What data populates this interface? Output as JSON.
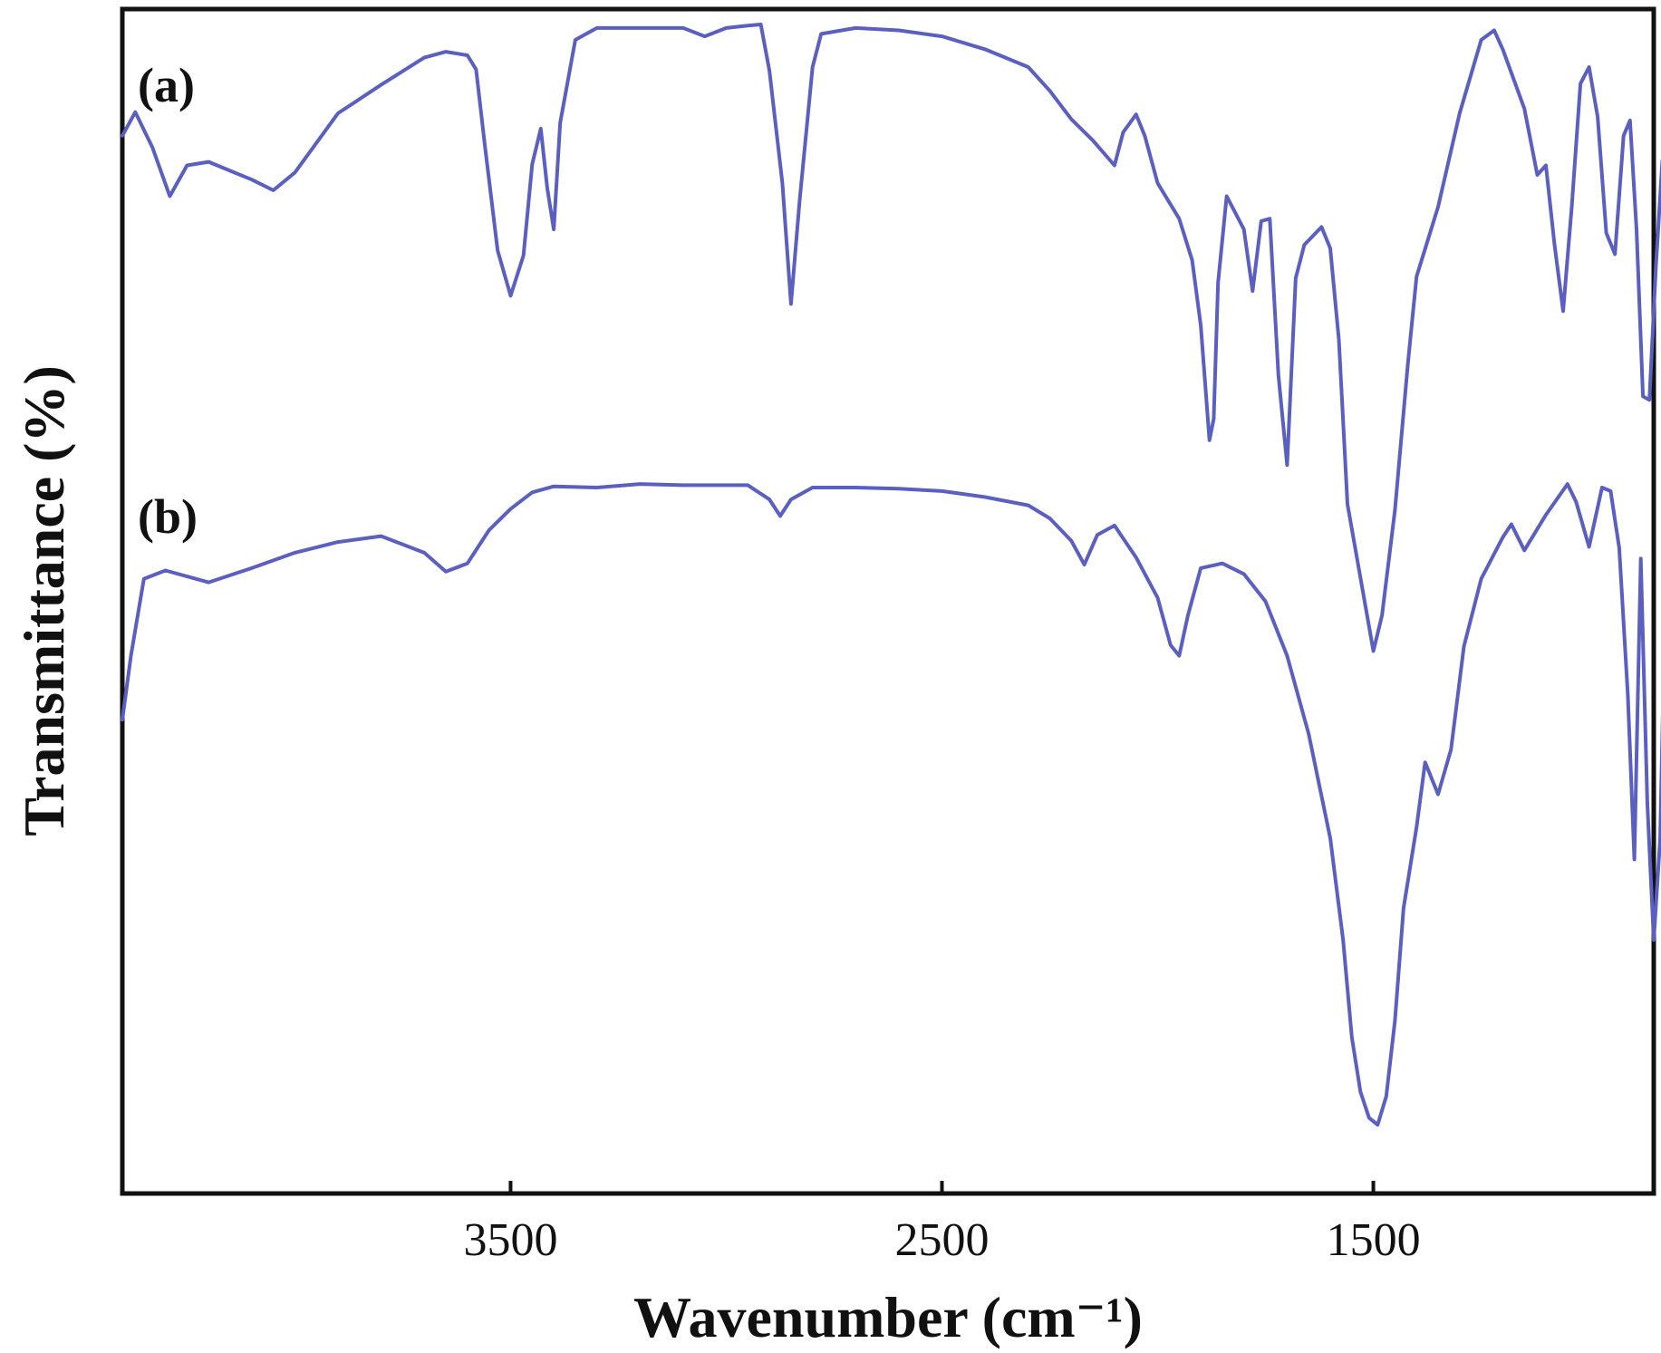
{
  "chart_data": {
    "type": "line",
    "xlabel": "Wavenumber (cm⁻¹)",
    "ylabel": "Transmittance (%)",
    "x_reversed": true,
    "xlim": [
      4400,
      850
    ],
    "ylim": [
      0,
      100
    ],
    "xticks": [
      3500,
      2500,
      1500
    ],
    "line_color": "#5a5fc0",
    "frame_color": "#111111",
    "grid": false,
    "legend": "none",
    "series": [
      {
        "label": "(a)",
        "points": [
          [
            4400,
            89.3
          ],
          [
            4370,
            91.3
          ],
          [
            4330,
            88.3
          ],
          [
            4290,
            84.2
          ],
          [
            4250,
            86.8
          ],
          [
            4200,
            87.1
          ],
          [
            4100,
            85.6
          ],
          [
            4050,
            84.7
          ],
          [
            4000,
            86.2
          ],
          [
            3900,
            91.2
          ],
          [
            3800,
            93.6
          ],
          [
            3700,
            95.9
          ],
          [
            3650,
            96.4
          ],
          [
            3600,
            96.1
          ],
          [
            3580,
            94.9
          ],
          [
            3560,
            88.6
          ],
          [
            3530,
            79.6
          ],
          [
            3500,
            75.8
          ],
          [
            3470,
            79.2
          ],
          [
            3450,
            86.9
          ],
          [
            3430,
            89.9
          ],
          [
            3415,
            84.9
          ],
          [
            3400,
            81.4
          ],
          [
            3385,
            90.4
          ],
          [
            3350,
            97.4
          ],
          [
            3300,
            98.4
          ],
          [
            3200,
            98.4
          ],
          [
            3100,
            98.4
          ],
          [
            3050,
            97.7
          ],
          [
            3000,
            98.4
          ],
          [
            2950,
            98.6
          ],
          [
            2920,
            98.7
          ],
          [
            2900,
            94.8
          ],
          [
            2870,
            85.3
          ],
          [
            2850,
            75.1
          ],
          [
            2830,
            83.8
          ],
          [
            2800,
            95.1
          ],
          [
            2780,
            97.9
          ],
          [
            2700,
            98.4
          ],
          [
            2600,
            98.2
          ],
          [
            2500,
            97.7
          ],
          [
            2400,
            96.6
          ],
          [
            2300,
            95.1
          ],
          [
            2250,
            93.1
          ],
          [
            2200,
            90.7
          ],
          [
            2150,
            88.9
          ],
          [
            2100,
            86.8
          ],
          [
            2080,
            89.6
          ],
          [
            2050,
            91.1
          ],
          [
            2030,
            89.3
          ],
          [
            2000,
            85.3
          ],
          [
            1950,
            82.3
          ],
          [
            1920,
            78.8
          ],
          [
            1900,
            73.3
          ],
          [
            1880,
            63.6
          ],
          [
            1870,
            65.4
          ],
          [
            1860,
            76.9
          ],
          [
            1840,
            84.2
          ],
          [
            1800,
            81.4
          ],
          [
            1780,
            76.2
          ],
          [
            1760,
            82.1
          ],
          [
            1740,
            82.3
          ],
          [
            1720,
            69.1
          ],
          [
            1700,
            61.5
          ],
          [
            1680,
            77.3
          ],
          [
            1660,
            80.1
          ],
          [
            1620,
            81.6
          ],
          [
            1600,
            79.8
          ],
          [
            1580,
            72.1
          ],
          [
            1560,
            58.2
          ],
          [
            1530,
            52.0
          ],
          [
            1500,
            45.8
          ],
          [
            1480,
            48.8
          ],
          [
            1450,
            57.7
          ],
          [
            1420,
            70.0
          ],
          [
            1400,
            77.4
          ],
          [
            1350,
            83.3
          ],
          [
            1300,
            91.2
          ],
          [
            1250,
            97.4
          ],
          [
            1220,
            98.2
          ],
          [
            1200,
            96.6
          ],
          [
            1150,
            91.6
          ],
          [
            1120,
            86.0
          ],
          [
            1100,
            86.8
          ],
          [
            1080,
            80.1
          ],
          [
            1060,
            74.5
          ],
          [
            1040,
            83.3
          ],
          [
            1020,
            93.7
          ],
          [
            1000,
            95.1
          ],
          [
            980,
            90.9
          ],
          [
            960,
            81.1
          ],
          [
            940,
            79.3
          ],
          [
            920,
            89.3
          ],
          [
            905,
            90.6
          ],
          [
            890,
            81.4
          ],
          [
            875,
            67.3
          ],
          [
            860,
            67.0
          ],
          [
            845,
            78.3
          ],
          [
            830,
            87.2
          ]
        ]
      },
      {
        "label": "(b)",
        "points": [
          [
            4400,
            40.0
          ],
          [
            4380,
            45.4
          ],
          [
            4350,
            51.9
          ],
          [
            4300,
            52.6
          ],
          [
            4200,
            51.6
          ],
          [
            4100,
            52.8
          ],
          [
            4000,
            54.1
          ],
          [
            3900,
            55.0
          ],
          [
            3800,
            55.5
          ],
          [
            3700,
            54.1
          ],
          [
            3650,
            52.5
          ],
          [
            3600,
            53.2
          ],
          [
            3550,
            56.0
          ],
          [
            3500,
            57.8
          ],
          [
            3450,
            59.2
          ],
          [
            3400,
            59.7
          ],
          [
            3300,
            59.6
          ],
          [
            3200,
            59.9
          ],
          [
            3100,
            59.8
          ],
          [
            2950,
            59.8
          ],
          [
            2900,
            58.6
          ],
          [
            2875,
            57.2
          ],
          [
            2850,
            58.6
          ],
          [
            2800,
            59.6
          ],
          [
            2700,
            59.6
          ],
          [
            2600,
            59.5
          ],
          [
            2500,
            59.3
          ],
          [
            2400,
            58.8
          ],
          [
            2300,
            58.1
          ],
          [
            2250,
            57.0
          ],
          [
            2200,
            55.1
          ],
          [
            2170,
            53.1
          ],
          [
            2140,
            55.6
          ],
          [
            2100,
            56.4
          ],
          [
            2050,
            53.7
          ],
          [
            2000,
            50.3
          ],
          [
            1970,
            46.3
          ],
          [
            1950,
            45.4
          ],
          [
            1930,
            48.8
          ],
          [
            1900,
            52.8
          ],
          [
            1850,
            53.2
          ],
          [
            1800,
            52.3
          ],
          [
            1750,
            50.0
          ],
          [
            1700,
            45.4
          ],
          [
            1650,
            38.8
          ],
          [
            1600,
            30.0
          ],
          [
            1570,
            21.4
          ],
          [
            1550,
            13.2
          ],
          [
            1530,
            8.6
          ],
          [
            1510,
            6.4
          ],
          [
            1490,
            5.8
          ],
          [
            1470,
            8.2
          ],
          [
            1450,
            14.6
          ],
          [
            1430,
            24.1
          ],
          [
            1400,
            30.9
          ],
          [
            1380,
            36.4
          ],
          [
            1350,
            33.7
          ],
          [
            1320,
            37.5
          ],
          [
            1290,
            46.2
          ],
          [
            1250,
            51.9
          ],
          [
            1200,
            55.4
          ],
          [
            1180,
            56.5
          ],
          [
            1150,
            54.3
          ],
          [
            1100,
            57.3
          ],
          [
            1050,
            59.9
          ],
          [
            1030,
            58.4
          ],
          [
            1000,
            54.6
          ],
          [
            970,
            59.6
          ],
          [
            950,
            59.3
          ],
          [
            930,
            54.5
          ],
          [
            910,
            42.1
          ],
          [
            895,
            28.2
          ],
          [
            880,
            53.6
          ],
          [
            865,
            33.0
          ],
          [
            850,
            21.4
          ],
          [
            835,
            30.0
          ],
          [
            820,
            56.4
          ]
        ]
      }
    ]
  }
}
